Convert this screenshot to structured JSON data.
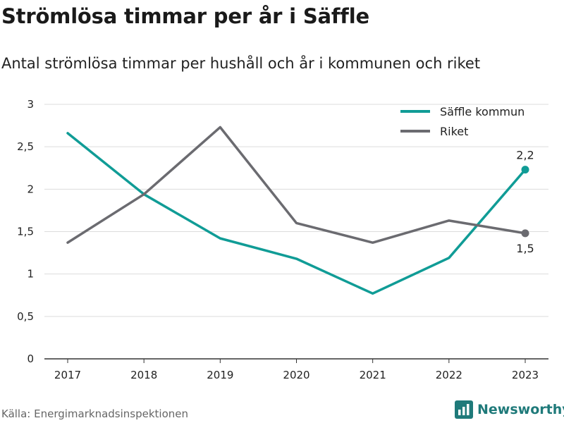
{
  "header": {
    "title": "Strömlösa timmar per år i Säffle",
    "subtitle": "Antal strömlösa timmar per hushåll och år i kommunen och riket"
  },
  "footer": {
    "source": "Källa: Energimarknadsinspektionen",
    "brand": "Newsworthy"
  },
  "colors": {
    "saffle": "#109c96",
    "riket": "#6b6b70",
    "grid": "#dcdcdc",
    "axis": "#333333",
    "brand": "#1f7a7a"
  },
  "chart_data": {
    "type": "line",
    "x": [
      "2017",
      "2018",
      "2019",
      "2020",
      "2021",
      "2022",
      "2023"
    ],
    "ylim": [
      0,
      3
    ],
    "yticks": [
      0,
      0.5,
      1,
      1.5,
      2,
      2.5,
      3
    ],
    "ytick_labels": [
      "0",
      "0,5",
      "1",
      "1,5",
      "2",
      "2,5",
      "3"
    ],
    "grid": true,
    "legend": "top-right",
    "series": [
      {
        "name": "Säffle kommun",
        "color": "#109c96",
        "values": [
          2.66,
          1.94,
          1.42,
          1.18,
          0.77,
          1.19,
          2.23
        ],
        "end_label": "2,2",
        "end_label_position": "above"
      },
      {
        "name": "Riket",
        "color": "#6b6b70",
        "values": [
          1.37,
          1.94,
          2.73,
          1.6,
          1.37,
          1.63,
          1.48
        ],
        "end_label": "1,5",
        "end_label_position": "below"
      }
    ]
  }
}
